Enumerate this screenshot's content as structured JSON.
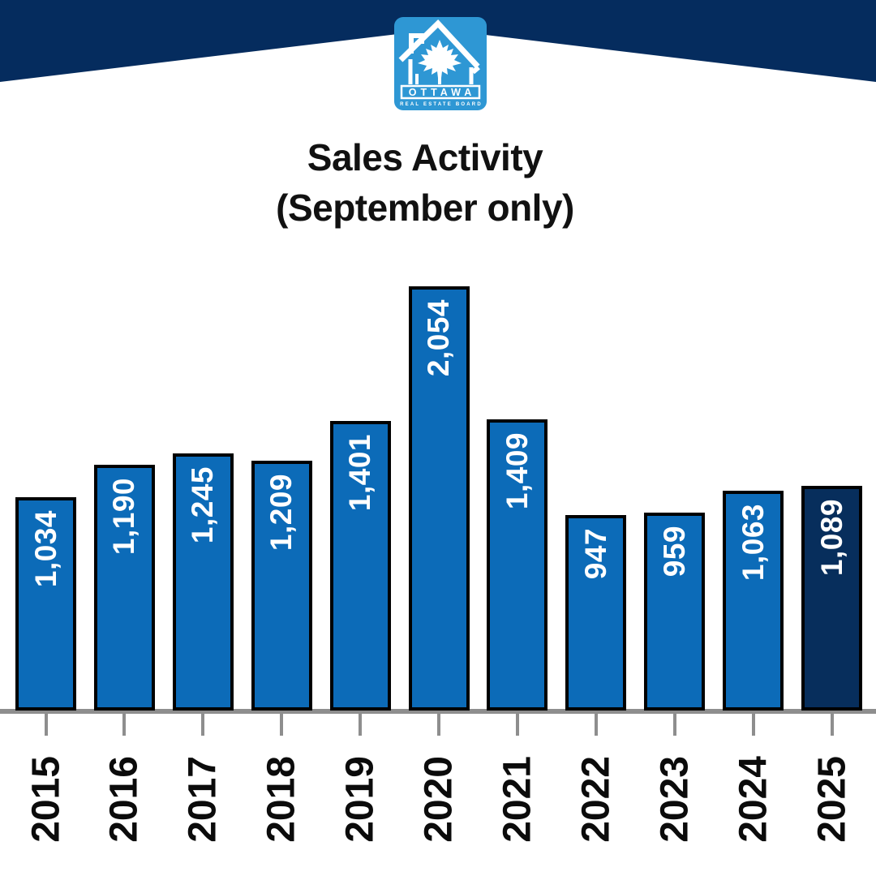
{
  "logo": {
    "org_name": "OTTAWA",
    "org_subtitle": "REAL ESTATE BOARD",
    "logo_blue": "#2E97D4"
  },
  "title": {
    "line1": "Sales Activity",
    "line2": "(September only)"
  },
  "colors": {
    "background": "#FFFFFF",
    "header_navy": "#052C5E",
    "title_black": "#111111",
    "bar_blue": "#0C6BB8",
    "bar_highlight_navy": "#072E5C",
    "bar_border": "#000000",
    "axis_gray": "#8E8E8E",
    "value_label_white": "#FFFFFF",
    "year_label_black": "#0B0B0B"
  },
  "chart_data": {
    "type": "bar",
    "title": "Sales Activity (September only)",
    "xlabel": "",
    "ylabel": "",
    "categories": [
      "2015",
      "2016",
      "2017",
      "2018",
      "2019",
      "2020",
      "2021",
      "2022",
      "2023",
      "2024",
      "2025"
    ],
    "values": [
      1034,
      1190,
      1245,
      1209,
      1401,
      2054,
      1409,
      947,
      959,
      1063,
      1089
    ],
    "value_labels": [
      "1,034",
      "1,190",
      "1,245",
      "1,209",
      "1,401",
      "2,054",
      "1,409",
      "947",
      "959",
      "1,063",
      "1,089"
    ],
    "ylim": [
      0,
      2054
    ],
    "grid": false,
    "legend": false,
    "orientation": "vertical",
    "label_rotation_degrees": 90,
    "highlight_index": 10,
    "highlight_note": "2025 bar shown in dark navy; all other bars medium blue"
  }
}
